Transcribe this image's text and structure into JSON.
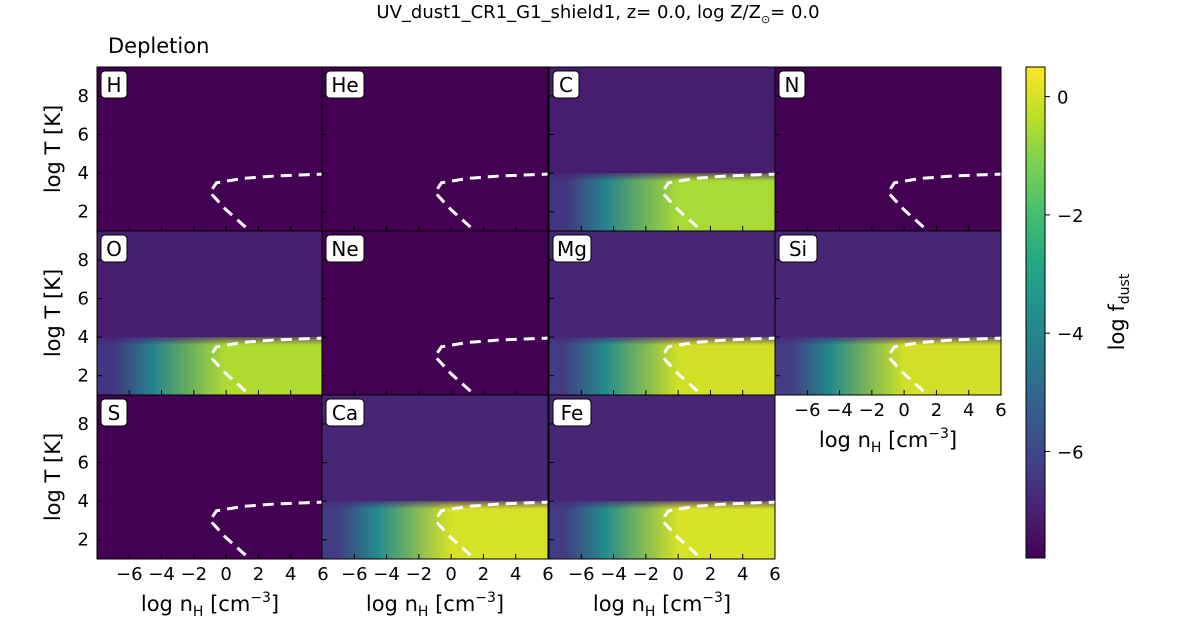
{
  "chart_data": {
    "type": "heatmap",
    "title": "UV_dust1_CR1_G1_shield1, z= 0.0, log Z/Z",
    "title_sun_symbol": "⊙",
    "title_suffix": "= 0.0",
    "subtitle": "Depletion",
    "xlabel": "log n",
    "xlabel_sub": "H",
    "xlabel_unit": " [cm",
    "xlabel_exp": "−3",
    "xlabel_close": "]",
    "ylabel": "log T [K]",
    "xlim": [
      -8,
      6
    ],
    "ylim": [
      1,
      9.5
    ],
    "xticks": [
      -6,
      -4,
      -2,
      0,
      2,
      4,
      6
    ],
    "yticks": [
      2,
      4,
      6,
      8
    ],
    "colorbar": {
      "label": "log f",
      "label_sub": "dust",
      "range": [
        -7.8,
        0.5
      ],
      "ticks": [
        0,
        -2,
        -4,
        -6
      ],
      "colormap": "viridis"
    },
    "panels": [
      {
        "element": "H",
        "background": -7.8,
        "dust_level": null
      },
      {
        "element": "He",
        "background": -7.8,
        "dust_level": null
      },
      {
        "element": "C",
        "background": -7.1,
        "dust_level": -0.6
      },
      {
        "element": "N",
        "background": -7.8,
        "dust_level": null
      },
      {
        "element": "O",
        "background": -7.1,
        "dust_level": -0.5
      },
      {
        "element": "Ne",
        "background": -7.8,
        "dust_level": null
      },
      {
        "element": "Mg",
        "background": -6.9,
        "dust_level": -0.1
      },
      {
        "element": "Si",
        "background": -6.9,
        "dust_level": -0.1
      },
      {
        "element": "S",
        "background": -7.8,
        "dust_level": null
      },
      {
        "element": "Ca",
        "background": -6.9,
        "dust_level": 0.0
      },
      {
        "element": "Fe",
        "background": -6.9,
        "dust_level": 0.0
      }
    ],
    "dust_region": {
      "logT_max": 4.0,
      "transition_logn": [
        -7,
        0
      ]
    },
    "equilibrium_curve": {
      "style": "dashed",
      "color": "#ffffff",
      "points": [
        [
          1.2,
          1.2
        ],
        [
          0.0,
          2.1
        ],
        [
          -1.0,
          3.0
        ],
        [
          -0.6,
          3.5
        ],
        [
          1,
          3.72
        ],
        [
          3,
          3.85
        ],
        [
          6,
          3.95
        ]
      ]
    }
  }
}
